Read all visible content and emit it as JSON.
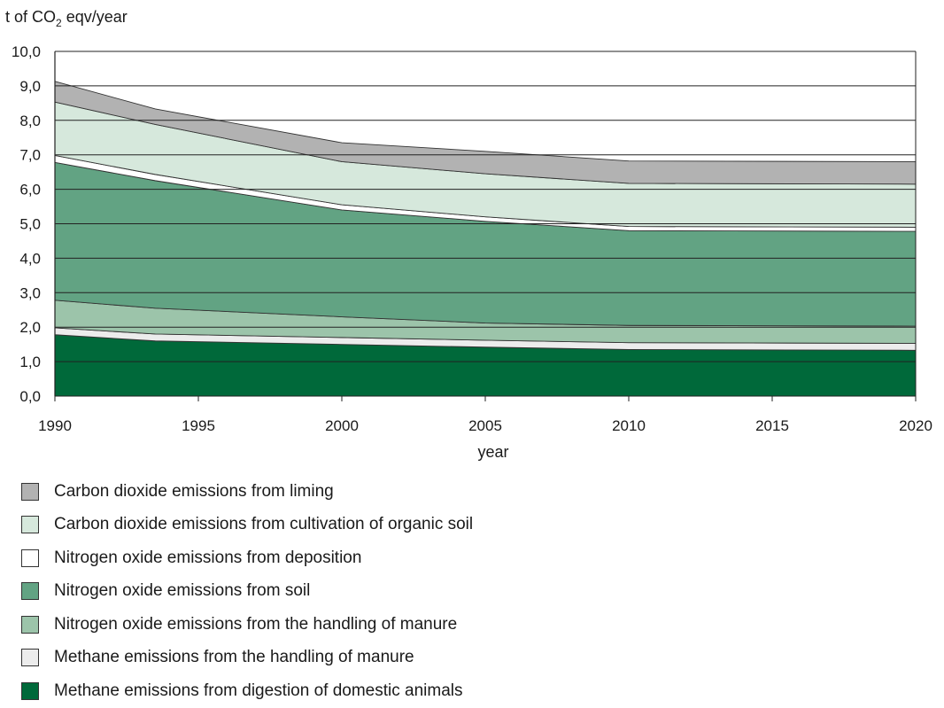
{
  "chart_data": {
    "type": "area",
    "stacked": true,
    "ylabel_prefix": "t of CO",
    "ylabel_sub": "2",
    "ylabel_suffix": " eqv/year",
    "xlabel": "year",
    "ylim": [
      0,
      10
    ],
    "yticks": [
      "0,0",
      "1,0",
      "2,0",
      "3,0",
      "4,0",
      "5,0",
      "6,0",
      "7,0",
      "8,0",
      "9,0",
      "10,0"
    ],
    "xlim": [
      1990,
      2020
    ],
    "xticks": [
      "1990",
      "1995",
      "2000",
      "2005",
      "2010",
      "2015",
      "2020"
    ],
    "grid": "horizontal",
    "legend_position": "bottom",
    "series": [
      {
        "name": "Methane emissions from digestion of domestic animals",
        "color": "#00693a",
        "points": [
          [
            1990,
            1.78
          ],
          [
            1993.5,
            1.6
          ],
          [
            2000,
            1.5
          ],
          [
            2005,
            1.42
          ],
          [
            2010,
            1.35
          ],
          [
            2020,
            1.33
          ]
        ]
      },
      {
        "name": "Methane emissions from the handling of manure",
        "color": "#ececec",
        "points": [
          [
            1990,
            0.2
          ],
          [
            1993.5,
            0.2
          ],
          [
            2000,
            0.2
          ],
          [
            2005,
            0.2
          ],
          [
            2010,
            0.2
          ],
          [
            2020,
            0.2
          ]
        ]
      },
      {
        "name": "Nitrogen oxide emissions from the handling of manure",
        "color": "#9cc4aa",
        "points": [
          [
            1990,
            0.8
          ],
          [
            1993.5,
            0.75
          ],
          [
            2000,
            0.6
          ],
          [
            2005,
            0.5
          ],
          [
            2010,
            0.5
          ],
          [
            2020,
            0.5
          ]
        ]
      },
      {
        "name": "Nitrogen oxide emissions from soil",
        "color": "#62a383",
        "points": [
          [
            1990,
            4.0
          ],
          [
            1993.5,
            3.7
          ],
          [
            2000,
            3.1
          ],
          [
            2005,
            2.95
          ],
          [
            2010,
            2.75
          ],
          [
            2020,
            2.75
          ]
        ]
      },
      {
        "name": "Nitrogen oxide emissions from deposition",
        "color": "#ffffff",
        "points": [
          [
            1990,
            0.2
          ],
          [
            1993.5,
            0.18
          ],
          [
            2000,
            0.15
          ],
          [
            2005,
            0.13
          ],
          [
            2010,
            0.12
          ],
          [
            2020,
            0.12
          ]
        ]
      },
      {
        "name": "Carbon dioxide emissions from cultivation of organic soil",
        "color": "#d6e8dc",
        "points": [
          [
            1990,
            1.55
          ],
          [
            1993.5,
            1.45
          ],
          [
            2000,
            1.25
          ],
          [
            2005,
            1.25
          ],
          [
            2010,
            1.25
          ],
          [
            2020,
            1.25
          ]
        ]
      },
      {
        "name": "Carbon dioxide emissions from liming",
        "color": "#b2b2b2",
        "points": [
          [
            1990,
            0.6
          ],
          [
            1993.5,
            0.45
          ],
          [
            2000,
            0.55
          ],
          [
            2005,
            0.65
          ],
          [
            2010,
            0.65
          ],
          [
            2020,
            0.65
          ]
        ]
      }
    ]
  }
}
